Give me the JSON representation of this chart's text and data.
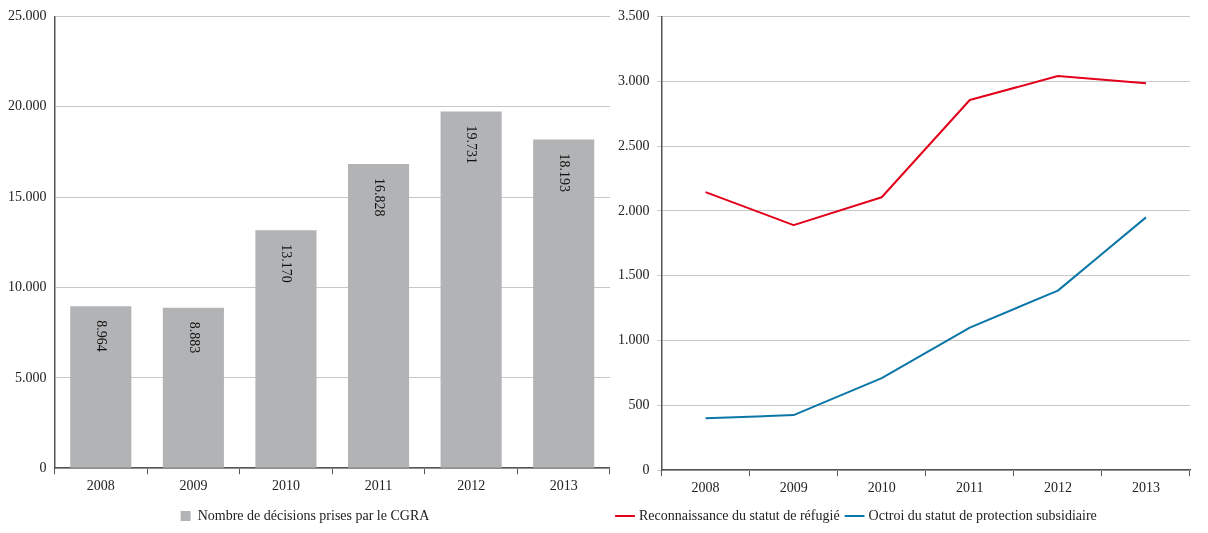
{
  "chart_data": [
    {
      "type": "bar",
      "categories": [
        "2008",
        "2009",
        "2010",
        "2011",
        "2012",
        "2013"
      ],
      "series": [
        {
          "name": "Nombre de décisions prises par le CGRA",
          "color": "#b2b3b5",
          "values": [
            8964,
            8883,
            13170,
            16828,
            19731,
            18193
          ],
          "value_labels": [
            "8.964",
            "8.883",
            "13.170",
            "16.828",
            "19.731",
            "18.193"
          ]
        }
      ],
      "ylim": [
        0,
        25000
      ],
      "yticks": [
        {
          "value": 0,
          "label": "0"
        },
        {
          "value": 5000,
          "label": "5.000"
        },
        {
          "value": 10000,
          "label": "10.000"
        },
        {
          "value": 15000,
          "label": "15.000"
        },
        {
          "value": 20000,
          "label": "20.000"
        },
        {
          "value": 25000,
          "label": "25.000"
        }
      ],
      "grid": "y",
      "legend": "bottom"
    },
    {
      "type": "line",
      "categories": [
        "2008",
        "2009",
        "2010",
        "2011",
        "2012",
        "2013"
      ],
      "series": [
        {
          "name": "Reconnaissance du statut de réfugié",
          "color": "#e2001a",
          "values": [
            2145,
            1890,
            2105,
            2855,
            3040,
            2985
          ]
        },
        {
          "name": "Octroi du statut de protection subsidiaire",
          "color": "#0b76a8",
          "values": [
            400,
            425,
            710,
            1100,
            1385,
            1950
          ]
        }
      ],
      "ylim": [
        0,
        3500
      ],
      "yticks": [
        {
          "value": 0,
          "label": "0"
        },
        {
          "value": 500,
          "label": "500"
        },
        {
          "value": 1000,
          "label": "1.000"
        },
        {
          "value": 1500,
          "label": "1.500"
        },
        {
          "value": 2000,
          "label": "2.000"
        },
        {
          "value": 2500,
          "label": "2.500"
        },
        {
          "value": 3000,
          "label": "3.000"
        },
        {
          "value": 3500,
          "label": "3.500"
        }
      ],
      "grid": "y",
      "legend": "bottom left",
      "marker": "none",
      "line_style": "solid"
    }
  ]
}
